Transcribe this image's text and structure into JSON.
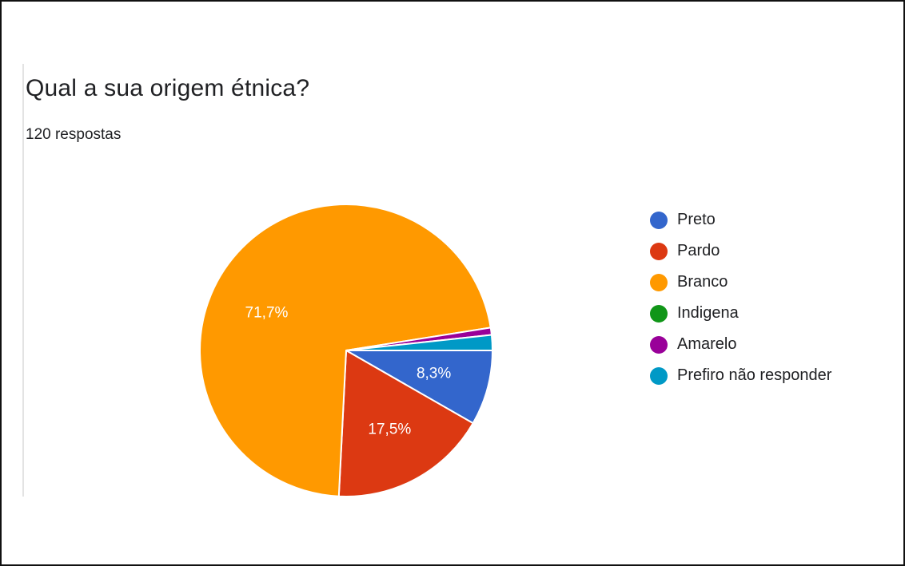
{
  "question": {
    "title": "Qual a sua origem étnica?",
    "responses": "120 respostas"
  },
  "chart_data": {
    "type": "pie",
    "title": "Qual a sua origem étnica?",
    "subtitle": "120 respostas",
    "legend_position": "right",
    "slices": [
      {
        "name": "Preto",
        "percent": 8.3,
        "label": "8,3%",
        "color": "#3366cc"
      },
      {
        "name": "Pardo",
        "percent": 17.5,
        "label": "17,5%",
        "color": "#dc3912"
      },
      {
        "name": "Branco",
        "percent": 71.7,
        "label": "71,7%",
        "color": "#ff9900"
      },
      {
        "name": "Indigena",
        "percent": 0,
        "label": "",
        "color": "#109618"
      },
      {
        "name": "Amarelo",
        "percent": 0.8,
        "label": "",
        "color": "#990099"
      },
      {
        "name": "Prefiro não responder",
        "percent": 1.7,
        "label": "",
        "color": "#0099c6"
      }
    ]
  }
}
